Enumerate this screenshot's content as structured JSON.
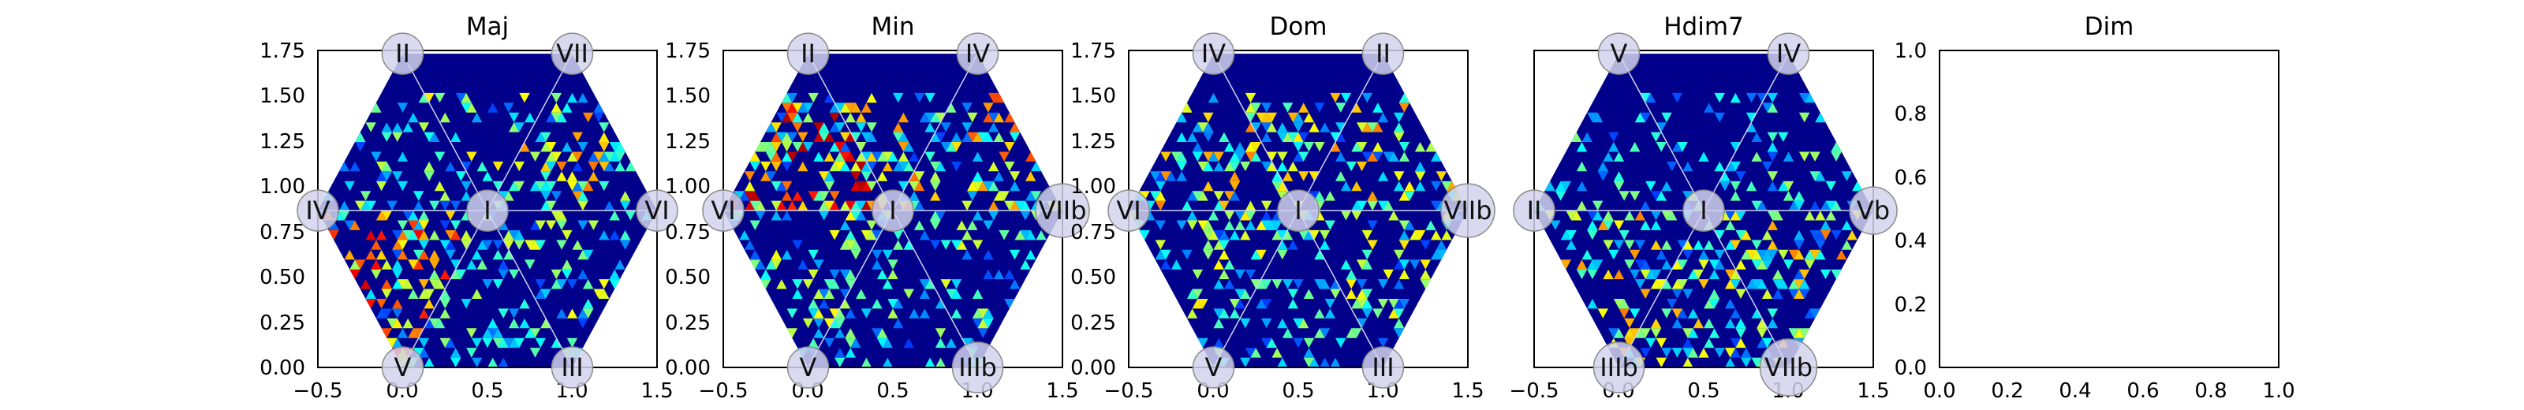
{
  "chart_data": [
    {
      "type": "heatmap",
      "title": "Maj",
      "xlim": [
        -0.5,
        1.5
      ],
      "ylim": [
        0.0,
        1.75
      ],
      "xticks": [
        "−0.5",
        "0.0",
        "0.5",
        "1.0",
        "1.5"
      ],
      "yticks": [
        "0.00",
        "0.25",
        "0.50",
        "0.75",
        "1.00",
        "1.25",
        "1.50",
        "1.75"
      ],
      "colormap": "jet",
      "region_labels": [
        {
          "text": "II",
          "x": 0.0,
          "y": 1.732
        },
        {
          "text": "VII",
          "x": 1.0,
          "y": 1.732
        },
        {
          "text": "IV",
          "x": -0.5,
          "y": 0.866
        },
        {
          "text": "I",
          "x": 0.5,
          "y": 0.866
        },
        {
          "text": "VI",
          "x": 1.5,
          "y": 0.866
        },
        {
          "text": "V",
          "x": 0.0,
          "y": 0.0
        },
        {
          "text": "III",
          "x": 1.0,
          "y": 0.0
        }
      ],
      "sector_intensity": [
        0.55,
        0.45,
        0.4,
        0.7,
        0.35,
        0.45
      ],
      "visible": true
    },
    {
      "type": "heatmap",
      "title": "Min",
      "xlim": [
        -0.5,
        1.5
      ],
      "ylim": [
        0.0,
        1.75
      ],
      "xticks": [
        "−0.5",
        "0.0",
        "0.5",
        "1.0",
        "1.5"
      ],
      "yticks": [
        "0.00",
        "0.25",
        "0.50",
        "0.75",
        "1.00",
        "1.25",
        "1.50",
        "1.75"
      ],
      "colormap": "jet",
      "region_labels": [
        {
          "text": "II",
          "x": 0.0,
          "y": 1.732
        },
        {
          "text": "IV",
          "x": 1.0,
          "y": 1.732
        },
        {
          "text": "VI",
          "x": -0.5,
          "y": 0.866
        },
        {
          "text": "I",
          "x": 0.5,
          "y": 0.866
        },
        {
          "text": "VIIb",
          "x": 1.5,
          "y": 0.866
        },
        {
          "text": "V",
          "x": 0.0,
          "y": 0.0
        },
        {
          "text": "IIIb",
          "x": 1.0,
          "y": 0.0
        }
      ],
      "sector_intensity": [
        0.6,
        0.55,
        0.8,
        0.45,
        0.35,
        0.4
      ],
      "visible": true
    },
    {
      "type": "heatmap",
      "title": "Dom",
      "xlim": [
        -0.5,
        1.5
      ],
      "ylim": [
        0.0,
        1.75
      ],
      "xticks": [
        "−0.5",
        "0.0",
        "0.5",
        "1.0",
        "1.5"
      ],
      "yticks": [
        "0.00",
        "0.25",
        "0.50",
        "0.75",
        "1.00",
        "1.25",
        "1.50",
        "1.75"
      ],
      "colormap": "jet",
      "region_labels": [
        {
          "text": "IV",
          "x": 0.0,
          "y": 1.732
        },
        {
          "text": "II",
          "x": 1.0,
          "y": 1.732
        },
        {
          "text": "VI",
          "x": -0.5,
          "y": 0.866
        },
        {
          "text": "I",
          "x": 0.5,
          "y": 0.866
        },
        {
          "text": "VIIb",
          "x": 1.5,
          "y": 0.866
        },
        {
          "text": "V",
          "x": 0.0,
          "y": 0.0
        },
        {
          "text": "III",
          "x": 1.0,
          "y": 0.0
        }
      ],
      "sector_intensity": [
        0.55,
        0.5,
        0.55,
        0.45,
        0.35,
        0.45
      ],
      "visible": true
    },
    {
      "type": "heatmap",
      "title": "Hdim7",
      "xlim": [
        -0.5,
        1.5
      ],
      "ylim": [
        0.0,
        1.75
      ],
      "xticks": [
        "−0.5",
        "0.0",
        "0.5",
        "1.0",
        "1.5"
      ],
      "yticks": [],
      "colormap": "jet",
      "region_labels": [
        {
          "text": "V",
          "x": 0.0,
          "y": 1.732
        },
        {
          "text": "IV",
          "x": 1.0,
          "y": 1.732
        },
        {
          "text": "II",
          "x": -0.5,
          "y": 0.866
        },
        {
          "text": "I",
          "x": 0.5,
          "y": 0.866
        },
        {
          "text": "Vb",
          "x": 1.5,
          "y": 0.866
        },
        {
          "text": "IIIb",
          "x": 0.0,
          "y": 0.0
        },
        {
          "text": "VIIb",
          "x": 1.0,
          "y": 0.0
        }
      ],
      "sector_intensity": [
        0.35,
        0.25,
        0.35,
        0.55,
        0.5,
        0.55
      ],
      "visible": true
    },
    {
      "type": "heatmap",
      "title": "Dim",
      "xlim": [
        0.0,
        1.0
      ],
      "ylim": [
        0.0,
        1.0
      ],
      "xticks": [
        "0.0",
        "0.2",
        "0.4",
        "0.6",
        "0.8",
        "1.0"
      ],
      "yticks": [
        "0.0",
        "0.2",
        "0.4",
        "0.6",
        "0.8",
        "1.0"
      ],
      "region_labels": [],
      "visible": false
    }
  ],
  "colors": {
    "hexagon_background": "#00008b",
    "divider_lines": "#d0d4ee",
    "label_circle_fill": "#d2d4ec",
    "label_circle_stroke": "#8a8a8a"
  }
}
